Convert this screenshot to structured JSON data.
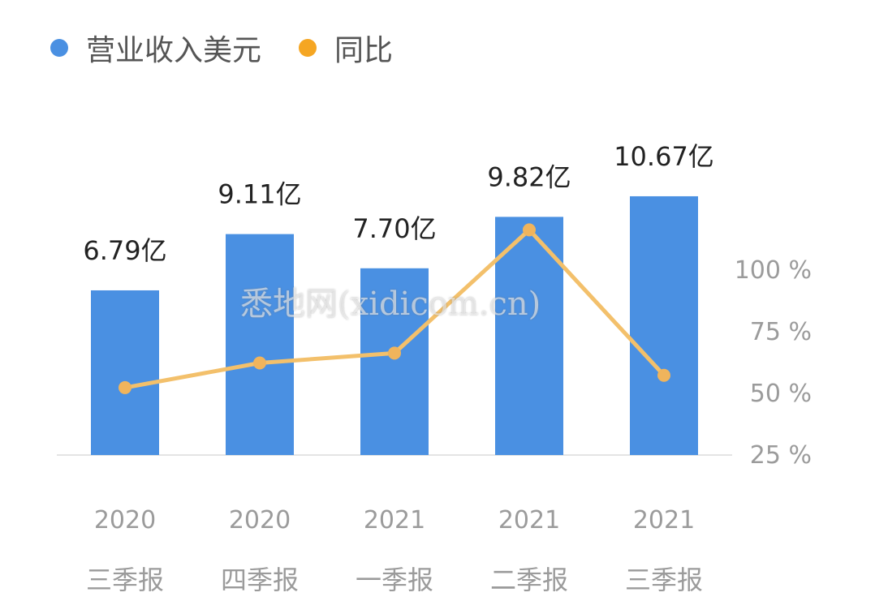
{
  "legend": {
    "revenue_label": "营业收入美元",
    "yoy_label": "同比"
  },
  "watermark": "悉地网(xidicom.cn)",
  "colors": {
    "bar": "#4a90e2",
    "line": "#f3c06b",
    "legend_yoy_dot": "#f5a623",
    "axis_text": "#9b9b9b",
    "label_text": "#222222"
  },
  "chart_data": {
    "type": "bar",
    "categories": [
      {
        "year": "2020",
        "quarter": "三季报"
      },
      {
        "year": "2020",
        "quarter": "四季报"
      },
      {
        "year": "2021",
        "quarter": "一季报"
      },
      {
        "year": "2021",
        "quarter": "二季报"
      },
      {
        "year": "2021",
        "quarter": "三季报"
      }
    ],
    "series": [
      {
        "name": "营业收入美元",
        "type": "bar",
        "values": [
          6.79,
          9.11,
          7.7,
          9.82,
          10.67
        ],
        "labels": [
          "6.79亿",
          "9.11亿",
          "7.70亿",
          "9.82亿",
          "10.67亿"
        ]
      },
      {
        "name": "同比",
        "type": "line",
        "axis": "right",
        "values": [
          52,
          62,
          66,
          116,
          57
        ]
      }
    ],
    "y_right": {
      "ticks": [
        25,
        50,
        75,
        100
      ],
      "tick_labels": [
        "25 %",
        "50 %",
        "75 %",
        "100 %"
      ]
    }
  }
}
